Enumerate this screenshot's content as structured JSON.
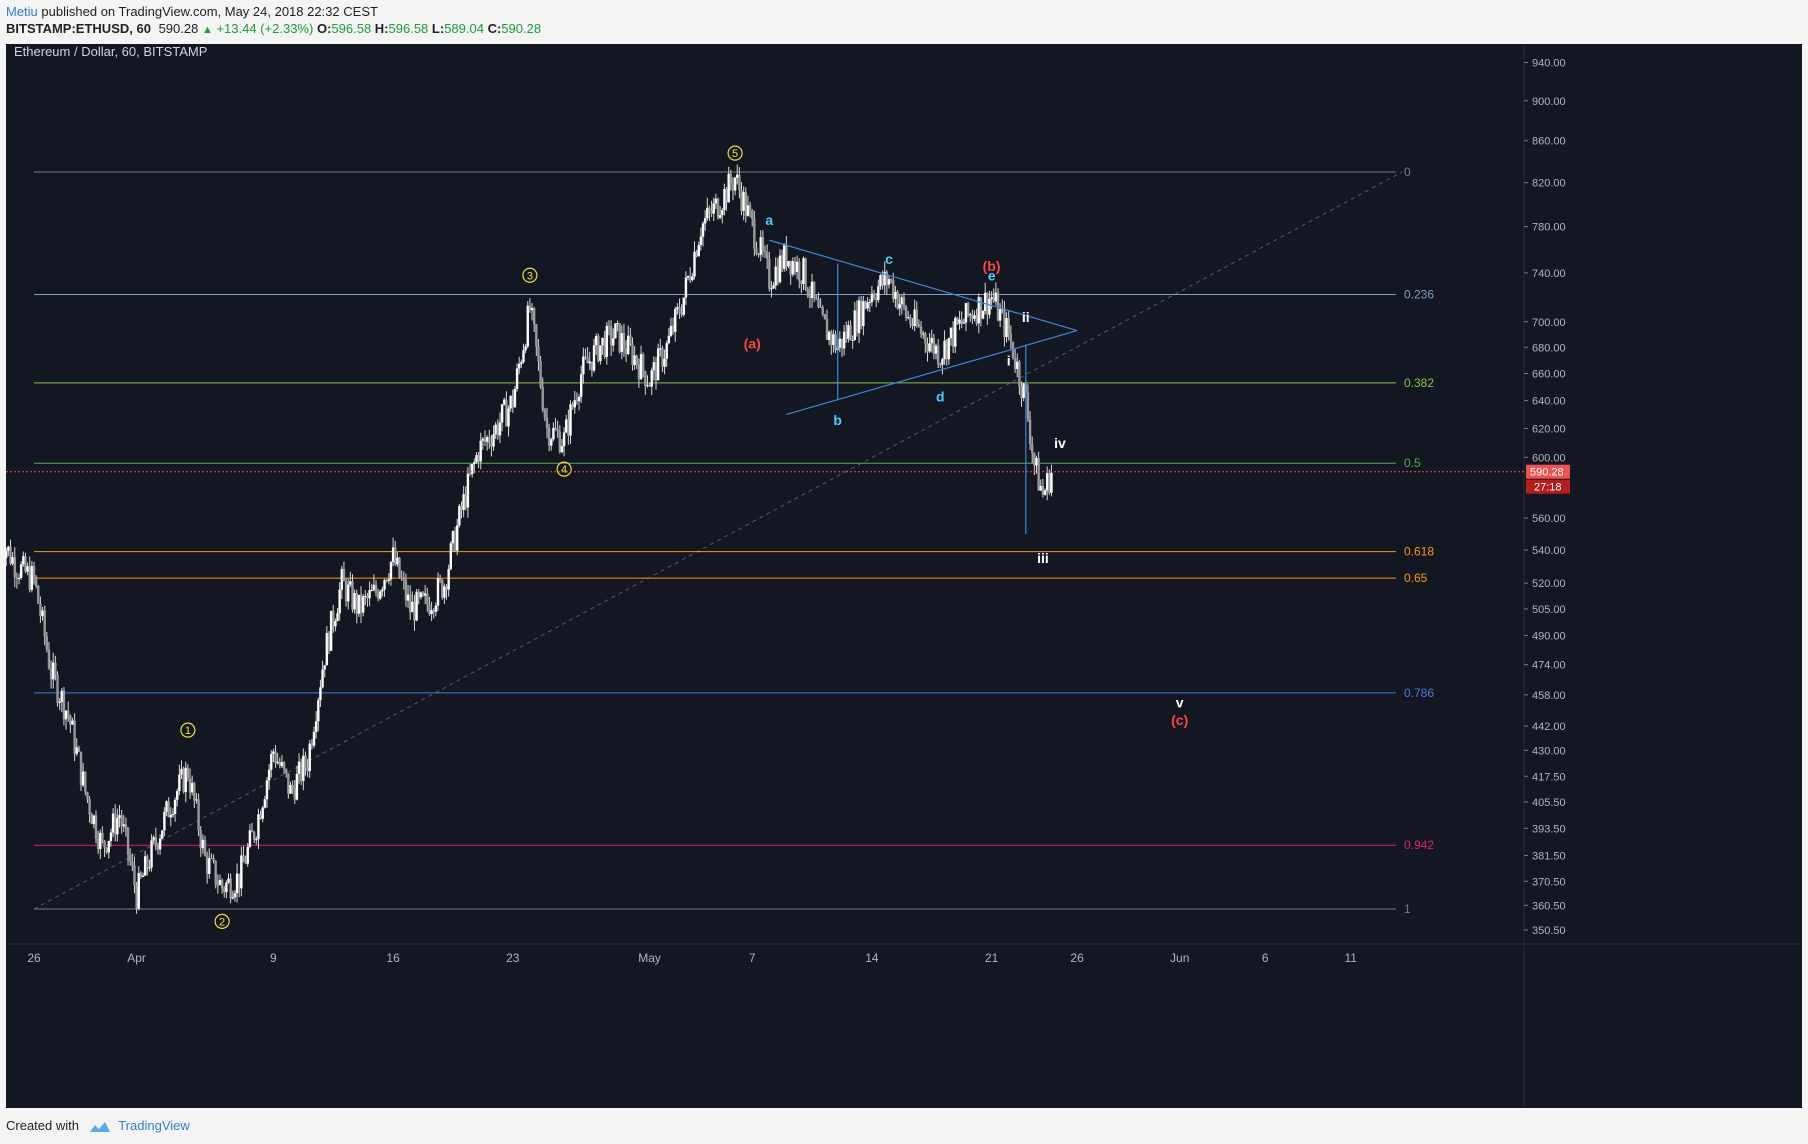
{
  "header": {
    "author": "Metiu",
    "published": "published on TradingView.com, May 24, 2018 22:32 CEST",
    "symbol": "BITSTAMP:ETHUSD, 60",
    "last": "590.28",
    "change": "+13.44 (+2.33%)",
    "o_label": "O:",
    "o": "596.58",
    "h_label": "H:",
    "h": "596.58",
    "l_label": "L:",
    "l": "589.04",
    "c_label": "C:",
    "c": "590.28"
  },
  "footer": {
    "created_with": "Created with",
    "brand": "TradingView"
  },
  "colors": {
    "background": "#131722",
    "candle_up": "#e8e8e8",
    "candle_down": "#e8e8e8",
    "fib_0": "#787b86",
    "fib_0236": "#7f9fc0",
    "fib_0382": "#8bc34a",
    "fib_05": "#4caf50",
    "fib_0618": "#ff9800",
    "fib_065": "#ff9800",
    "fib_0786": "#3f7fd6",
    "fib_0942": "#e91e63",
    "fib_1": "#787b86",
    "wave_yellow": "#f0e030",
    "wave_cyan": "#3fd0ff",
    "wave_red": "#ff4444",
    "wave_white": "#ffffff",
    "triangle": "#3f86d6",
    "price_tag": "#ef5350"
  },
  "chart_data": {
    "type": "candlestick",
    "title": "Ethereum / Dollar, 60, BITSTAMP",
    "y_scale": "log",
    "ylim": [
      345,
      960
    ],
    "y_ticks": [
      "940.00",
      "900.00",
      "860.00",
      "820.00",
      "780.00",
      "740.00",
      "700.00",
      "680.00",
      "660.00",
      "640.00",
      "620.00",
      "600.00",
      "560.00",
      "540.00",
      "520.00",
      "505.00",
      "490.00",
      "474.00",
      "458.00",
      "442.00",
      "430.00",
      "417.50",
      "405.50",
      "393.50",
      "381.50",
      "370.50",
      "360.50",
      "350.50"
    ],
    "x_range": [
      "2018-03-26",
      "2018-06-14"
    ],
    "x_ticks": [
      {
        "label": "26",
        "date": "2018-03-26"
      },
      {
        "label": "Apr",
        "date": "2018-04-01"
      },
      {
        "label": "9",
        "date": "2018-04-09"
      },
      {
        "label": "16",
        "date": "2018-04-16"
      },
      {
        "label": "23",
        "date": "2018-04-23"
      },
      {
        "label": "May",
        "date": "2018-05-01"
      },
      {
        "label": "7",
        "date": "2018-05-07"
      },
      {
        "label": "14",
        "date": "2018-05-14"
      },
      {
        "label": "21",
        "date": "2018-05-21"
      },
      {
        "label": "26",
        "date": "2018-05-26"
      },
      {
        "label": "Jun",
        "date": "2018-06-01"
      },
      {
        "label": "6",
        "date": "2018-06-06"
      },
      {
        "label": "11",
        "date": "2018-06-11"
      }
    ],
    "price_path": [
      {
        "date": "2018-03-24",
        "price": 548
      },
      {
        "date": "2018-03-25",
        "price": 530
      },
      {
        "date": "2018-03-26",
        "price": 522
      },
      {
        "date": "2018-03-27",
        "price": 470
      },
      {
        "date": "2018-03-28",
        "price": 448
      },
      {
        "date": "2018-03-29",
        "price": 410
      },
      {
        "date": "2018-03-30",
        "price": 385
      },
      {
        "date": "2018-03-31",
        "price": 400
      },
      {
        "date": "2018-04-01",
        "price": 365
      },
      {
        "date": "2018-04-02",
        "price": 385
      },
      {
        "date": "2018-04-03",
        "price": 405
      },
      {
        "date": "2018-04-04",
        "price": 420
      },
      {
        "date": "2018-04-05",
        "price": 380
      },
      {
        "date": "2018-04-06",
        "price": 368
      },
      {
        "date": "2018-04-07",
        "price": 372
      },
      {
        "date": "2018-04-08",
        "price": 395
      },
      {
        "date": "2018-04-09",
        "price": 430
      },
      {
        "date": "2018-04-10",
        "price": 410
      },
      {
        "date": "2018-04-11",
        "price": 425
      },
      {
        "date": "2018-04-12",
        "price": 480
      },
      {
        "date": "2018-04-13",
        "price": 520
      },
      {
        "date": "2018-04-14",
        "price": 505
      },
      {
        "date": "2018-04-15",
        "price": 515
      },
      {
        "date": "2018-04-16",
        "price": 535
      },
      {
        "date": "2018-04-17",
        "price": 505
      },
      {
        "date": "2018-04-18",
        "price": 508
      },
      {
        "date": "2018-04-19",
        "price": 520
      },
      {
        "date": "2018-04-20",
        "price": 565
      },
      {
        "date": "2018-04-21",
        "price": 605
      },
      {
        "date": "2018-04-22",
        "price": 620
      },
      {
        "date": "2018-04-23",
        "price": 640
      },
      {
        "date": "2018-04-24",
        "price": 710
      },
      {
        "date": "2018-04-25",
        "price": 620
      },
      {
        "date": "2018-04-26",
        "price": 612
      },
      {
        "date": "2018-04-27",
        "price": 660
      },
      {
        "date": "2018-04-28",
        "price": 680
      },
      {
        "date": "2018-04-29",
        "price": 690
      },
      {
        "date": "2018-04-30",
        "price": 675
      },
      {
        "date": "2018-05-01",
        "price": 655
      },
      {
        "date": "2018-05-02",
        "price": 680
      },
      {
        "date": "2018-05-03",
        "price": 720
      },
      {
        "date": "2018-05-04",
        "price": 780
      },
      {
        "date": "2018-05-05",
        "price": 800
      },
      {
        "date": "2018-05-06",
        "price": 825
      },
      {
        "date": "2018-05-07",
        "price": 780
      },
      {
        "date": "2018-05-08",
        "price": 735
      },
      {
        "date": "2018-05-09",
        "price": 755
      },
      {
        "date": "2018-05-10",
        "price": 740
      },
      {
        "date": "2018-05-11",
        "price": 700
      },
      {
        "date": "2018-05-12",
        "price": 680
      },
      {
        "date": "2018-05-13",
        "price": 700
      },
      {
        "date": "2018-05-14",
        "price": 725
      },
      {
        "date": "2018-05-15",
        "price": 735
      },
      {
        "date": "2018-05-16",
        "price": 705
      },
      {
        "date": "2018-05-17",
        "price": 690
      },
      {
        "date": "2018-05-18",
        "price": 675
      },
      {
        "date": "2018-05-19",
        "price": 695
      },
      {
        "date": "2018-05-20",
        "price": 710
      },
      {
        "date": "2018-05-21",
        "price": 720
      },
      {
        "date": "2018-05-22",
        "price": 690
      },
      {
        "date": "2018-05-23",
        "price": 640
      },
      {
        "date": "2018-05-23T12:00",
        "price": 595
      },
      {
        "date": "2018-05-24",
        "price": 575
      },
      {
        "date": "2018-05-24T12:00",
        "price": 590
      }
    ],
    "fib_levels": [
      {
        "label": "0",
        "price": 830
      },
      {
        "label": "0.236",
        "price": 722
      },
      {
        "label": "0.382",
        "price": 653
      },
      {
        "label": "0.5",
        "price": 596
      },
      {
        "label": "0.618",
        "price": 539
      },
      {
        "label": "0.65",
        "price": 523
      },
      {
        "label": "0.786",
        "price": 459
      },
      {
        "label": "0.942",
        "price": 386
      },
      {
        "label": "1",
        "price": 359
      }
    ],
    "wave_labels": [
      {
        "text": "1",
        "style": "yellow-circle",
        "date": "2018-04-04",
        "price": 440
      },
      {
        "text": "2",
        "style": "yellow-circle",
        "date": "2018-04-06",
        "price": 354
      },
      {
        "text": "3",
        "style": "yellow-circle",
        "date": "2018-04-24",
        "price": 738
      },
      {
        "text": "4",
        "style": "yellow-circle",
        "date": "2018-04-26",
        "price": 592
      },
      {
        "text": "5",
        "style": "yellow-circle",
        "date": "2018-05-06",
        "price": 848
      },
      {
        "text": "a",
        "style": "cyan",
        "date": "2018-05-08",
        "price": 786
      },
      {
        "text": "b",
        "style": "cyan",
        "date": "2018-05-12",
        "price": 626
      },
      {
        "text": "c",
        "style": "cyan",
        "date": "2018-05-15",
        "price": 752
      },
      {
        "text": "d",
        "style": "cyan",
        "date": "2018-05-18",
        "price": 643
      },
      {
        "text": "e",
        "style": "cyan",
        "date": "2018-05-21",
        "price": 738
      },
      {
        "text": "(a)",
        "style": "red",
        "date": "2018-05-07",
        "price": 683
      },
      {
        "text": "(b)",
        "style": "red",
        "date": "2018-05-21",
        "price": 746
      },
      {
        "text": "(c)",
        "style": "red",
        "date": "2018-06-01",
        "price": 445
      },
      {
        "text": "i",
        "style": "white",
        "date": "2018-05-22",
        "price": 670
      },
      {
        "text": "ii",
        "style": "white",
        "date": "2018-05-23",
        "price": 704
      },
      {
        "text": "iii",
        "style": "white",
        "date": "2018-05-24",
        "price": 535
      },
      {
        "text": "iv",
        "style": "white",
        "date": "2018-05-25",
        "price": 610
      },
      {
        "text": "v",
        "style": "white",
        "date": "2018-06-01",
        "price": 454
      }
    ],
    "triangle": {
      "upper": [
        {
          "date": "2018-05-08",
          "price": 768
        },
        {
          "date": "2018-05-26",
          "price": 693
        }
      ],
      "lower": [
        {
          "date": "2018-05-09",
          "price": 630
        },
        {
          "date": "2018-05-26",
          "price": 693
        }
      ],
      "verticals": [
        {
          "date": "2018-05-12",
          "from": 748,
          "to": 640
        },
        {
          "date": "2018-05-23",
          "from": 682,
          "to": 550
        }
      ]
    },
    "trend_line": [
      {
        "date": "2018-03-26",
        "price": 359
      },
      {
        "date": "2018-06-14",
        "price": 830
      }
    ],
    "last_price_tag": "590.28",
    "countdown_tag": "27:18"
  }
}
